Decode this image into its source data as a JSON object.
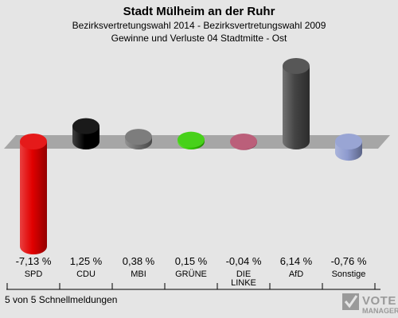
{
  "chart_data": {
    "type": "bar",
    "title": "Stadt Mülheim an der Ruhr",
    "subtitle_lines": [
      "Bezirksvertretungswahl 2014 - Bezirksvertretungswahl 2009",
      "Gewinne und Verluste 04 Stadtmitte - Ost"
    ],
    "categories": [
      [
        "SPD"
      ],
      [
        "CDU"
      ],
      [
        "MBI"
      ],
      [
        "GRÜNE"
      ],
      [
        "DIE",
        "LINKE"
      ],
      [
        "AfD"
      ],
      [
        "Sonstige"
      ]
    ],
    "values": [
      -7.13,
      1.25,
      0.38,
      0.15,
      -0.04,
      6.14,
      -0.76
    ],
    "value_labels": [
      "-7,13 %",
      "1,25 %",
      "0,38 %",
      "0,15 %",
      "-0,04 %",
      "6,14 %",
      "-0,76 %"
    ],
    "colors": [
      "#e20000",
      "#000000",
      "#6e6e6e",
      "#33cc00",
      "#b34d6b",
      "#444444",
      "#8e9bcf"
    ],
    "ylim": [
      -7.13,
      6.14
    ]
  },
  "footer": {
    "status": "5 von 5 Schnellmeldungen",
    "logo_text": "VOTE",
    "logo_subtext": "MANAGER"
  }
}
